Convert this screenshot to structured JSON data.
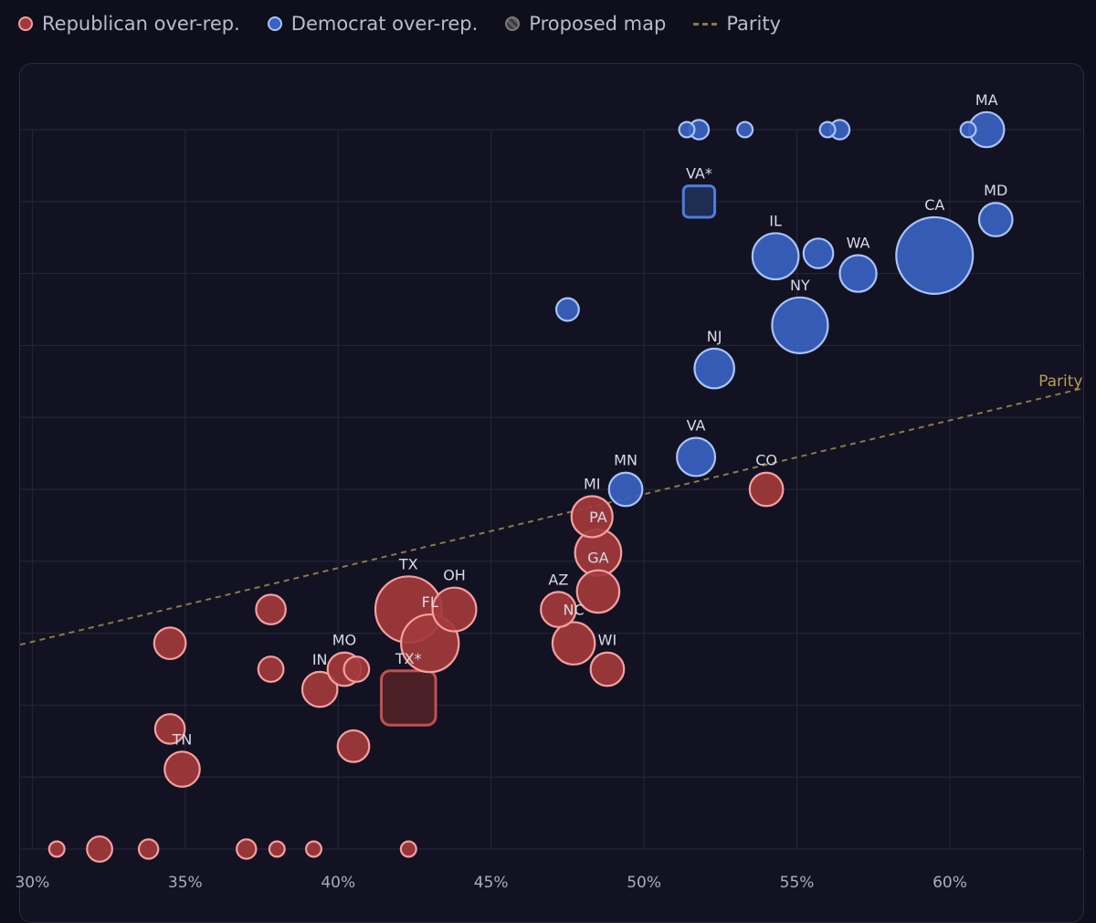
{
  "legend": {
    "items": [
      {
        "key": "rep",
        "label": "Republican over-rep."
      },
      {
        "key": "dem",
        "label": "Democrat over-rep."
      },
      {
        "key": "prop",
        "label": "Proposed map"
      },
      {
        "key": "parity",
        "label": "Parity"
      }
    ]
  },
  "colors": {
    "rep_fill": "#a3393c",
    "rep_stroke": "#f3a0a0",
    "dem_fill": "#3a62c2",
    "dem_stroke": "#a9c3f6",
    "prop_rep_fill": "#4b2026",
    "prop_dem_fill": "#1e2d52",
    "parity": "#8b7a45",
    "grid": "#262839"
  },
  "chart_data": {
    "type": "scatter",
    "title": "",
    "xlabel": "",
    "ylabel": "",
    "x_ticks": [
      "30%",
      "35%",
      "40%",
      "45%",
      "50%",
      "55%",
      "60%"
    ],
    "x_tick_values": [
      30,
      35,
      40,
      45,
      50,
      55,
      60
    ],
    "xlim": [
      29.6,
      64.3
    ],
    "ylim": [
      0,
      100
    ],
    "y_gridlines": [
      0,
      10,
      20,
      30,
      40,
      50,
      60,
      70,
      80,
      90,
      100
    ],
    "parity": {
      "label": "Parity",
      "x": [
        29.6,
        64.3
      ],
      "y": [
        28.4,
        64.0
      ]
    },
    "points": [
      {
        "label": "MA",
        "x": 61.2,
        "y": 100,
        "size": 9,
        "party": "dem"
      },
      {
        "label": "",
        "x": 51.4,
        "y": 100,
        "size": 1,
        "party": "dem"
      },
      {
        "label": "",
        "x": 51.8,
        "y": 100,
        "size": 2,
        "party": "dem"
      },
      {
        "label": "",
        "x": 53.3,
        "y": 100,
        "size": 1,
        "party": "dem"
      },
      {
        "label": "",
        "x": 56.0,
        "y": 100,
        "size": 1,
        "party": "dem"
      },
      {
        "label": "",
        "x": 56.4,
        "y": 100,
        "size": 2,
        "party": "dem"
      },
      {
        "label": "",
        "x": 60.6,
        "y": 100,
        "size": 1,
        "party": "dem"
      },
      {
        "label": "VA*",
        "x": 51.8,
        "y": 90.0,
        "size": 11,
        "party": "dem",
        "proposed": true
      },
      {
        "label": "MD",
        "x": 61.5,
        "y": 87.5,
        "size": 8,
        "party": "dem"
      },
      {
        "label": "CA",
        "x": 59.5,
        "y": 82.5,
        "size": 52,
        "party": "dem"
      },
      {
        "label": "IL",
        "x": 54.3,
        "y": 82.4,
        "size": 17,
        "party": "dem"
      },
      {
        "label": "",
        "x": 55.7,
        "y": 82.8,
        "size": 6,
        "party": "dem"
      },
      {
        "label": "WA",
        "x": 57.0,
        "y": 80.0,
        "size": 10,
        "party": "dem"
      },
      {
        "label": "",
        "x": 47.5,
        "y": 75.0,
        "size": 3,
        "party": "dem"
      },
      {
        "label": "NY",
        "x": 55.1,
        "y": 72.8,
        "size": 26,
        "party": "dem"
      },
      {
        "label": "NJ",
        "x": 52.3,
        "y": 66.8,
        "size": 12,
        "party": "dem"
      },
      {
        "label": "VA",
        "x": 51.7,
        "y": 54.5,
        "size": 11,
        "party": "dem"
      },
      {
        "label": "MN",
        "x": 49.4,
        "y": 50.0,
        "size": 8,
        "party": "dem"
      },
      {
        "label": "CO",
        "x": 54.0,
        "y": 50.0,
        "size": 8,
        "party": "rep"
      },
      {
        "label": "MI",
        "x": 48.3,
        "y": 46.2,
        "size": 13,
        "party": "rep"
      },
      {
        "label": "PA",
        "x": 48.5,
        "y": 41.2,
        "size": 17,
        "party": "rep"
      },
      {
        "label": "GA",
        "x": 48.5,
        "y": 35.8,
        "size": 14,
        "party": "rep"
      },
      {
        "label": "AZ",
        "x": 47.2,
        "y": 33.3,
        "size": 9,
        "party": "rep"
      },
      {
        "label": "NC",
        "x": 47.7,
        "y": 28.6,
        "size": 14,
        "party": "rep"
      },
      {
        "label": "WI",
        "x": 48.8,
        "y": 25.0,
        "size": 8,
        "party": "rep"
      },
      {
        "label": "TX",
        "x": 42.3,
        "y": 33.3,
        "size": 38,
        "party": "rep"
      },
      {
        "label": "OH",
        "x": 43.8,
        "y": 33.3,
        "size": 15,
        "party": "rep"
      },
      {
        "label": "FL",
        "x": 43.0,
        "y": 28.6,
        "size": 28,
        "party": "rep"
      },
      {
        "label": "TX*",
        "x": 42.3,
        "y": 21.0,
        "size": 38,
        "party": "rep",
        "proposed": true
      },
      {
        "label": "",
        "x": 37.8,
        "y": 33.3,
        "size": 6,
        "party": "rep"
      },
      {
        "label": "",
        "x": 34.5,
        "y": 28.6,
        "size": 7,
        "party": "rep"
      },
      {
        "label": "",
        "x": 37.8,
        "y": 25.0,
        "size": 4,
        "party": "rep"
      },
      {
        "label": "MO",
        "x": 40.2,
        "y": 25.0,
        "size": 8,
        "party": "rep"
      },
      {
        "label": "",
        "x": 40.6,
        "y": 25.0,
        "size": 4,
        "party": "rep"
      },
      {
        "label": "IN",
        "x": 39.4,
        "y": 22.2,
        "size": 9,
        "party": "rep"
      },
      {
        "label": "",
        "x": 34.5,
        "y": 16.7,
        "size": 6,
        "party": "rep"
      },
      {
        "label": "",
        "x": 40.5,
        "y": 14.3,
        "size": 7,
        "party": "rep"
      },
      {
        "label": "TN",
        "x": 34.9,
        "y": 11.1,
        "size": 9,
        "party": "rep"
      },
      {
        "label": "",
        "x": 30.8,
        "y": 0,
        "size": 1,
        "party": "rep"
      },
      {
        "label": "",
        "x": 32.2,
        "y": 0,
        "size": 4,
        "party": "rep"
      },
      {
        "label": "",
        "x": 33.8,
        "y": 0,
        "size": 2,
        "party": "rep"
      },
      {
        "label": "",
        "x": 37.0,
        "y": 0,
        "size": 2,
        "party": "rep"
      },
      {
        "label": "",
        "x": 38.0,
        "y": 0,
        "size": 1,
        "party": "rep"
      },
      {
        "label": "",
        "x": 39.2,
        "y": 0,
        "size": 1,
        "party": "rep"
      },
      {
        "label": "",
        "x": 42.3,
        "y": 0,
        "size": 1,
        "party": "rep"
      }
    ]
  }
}
